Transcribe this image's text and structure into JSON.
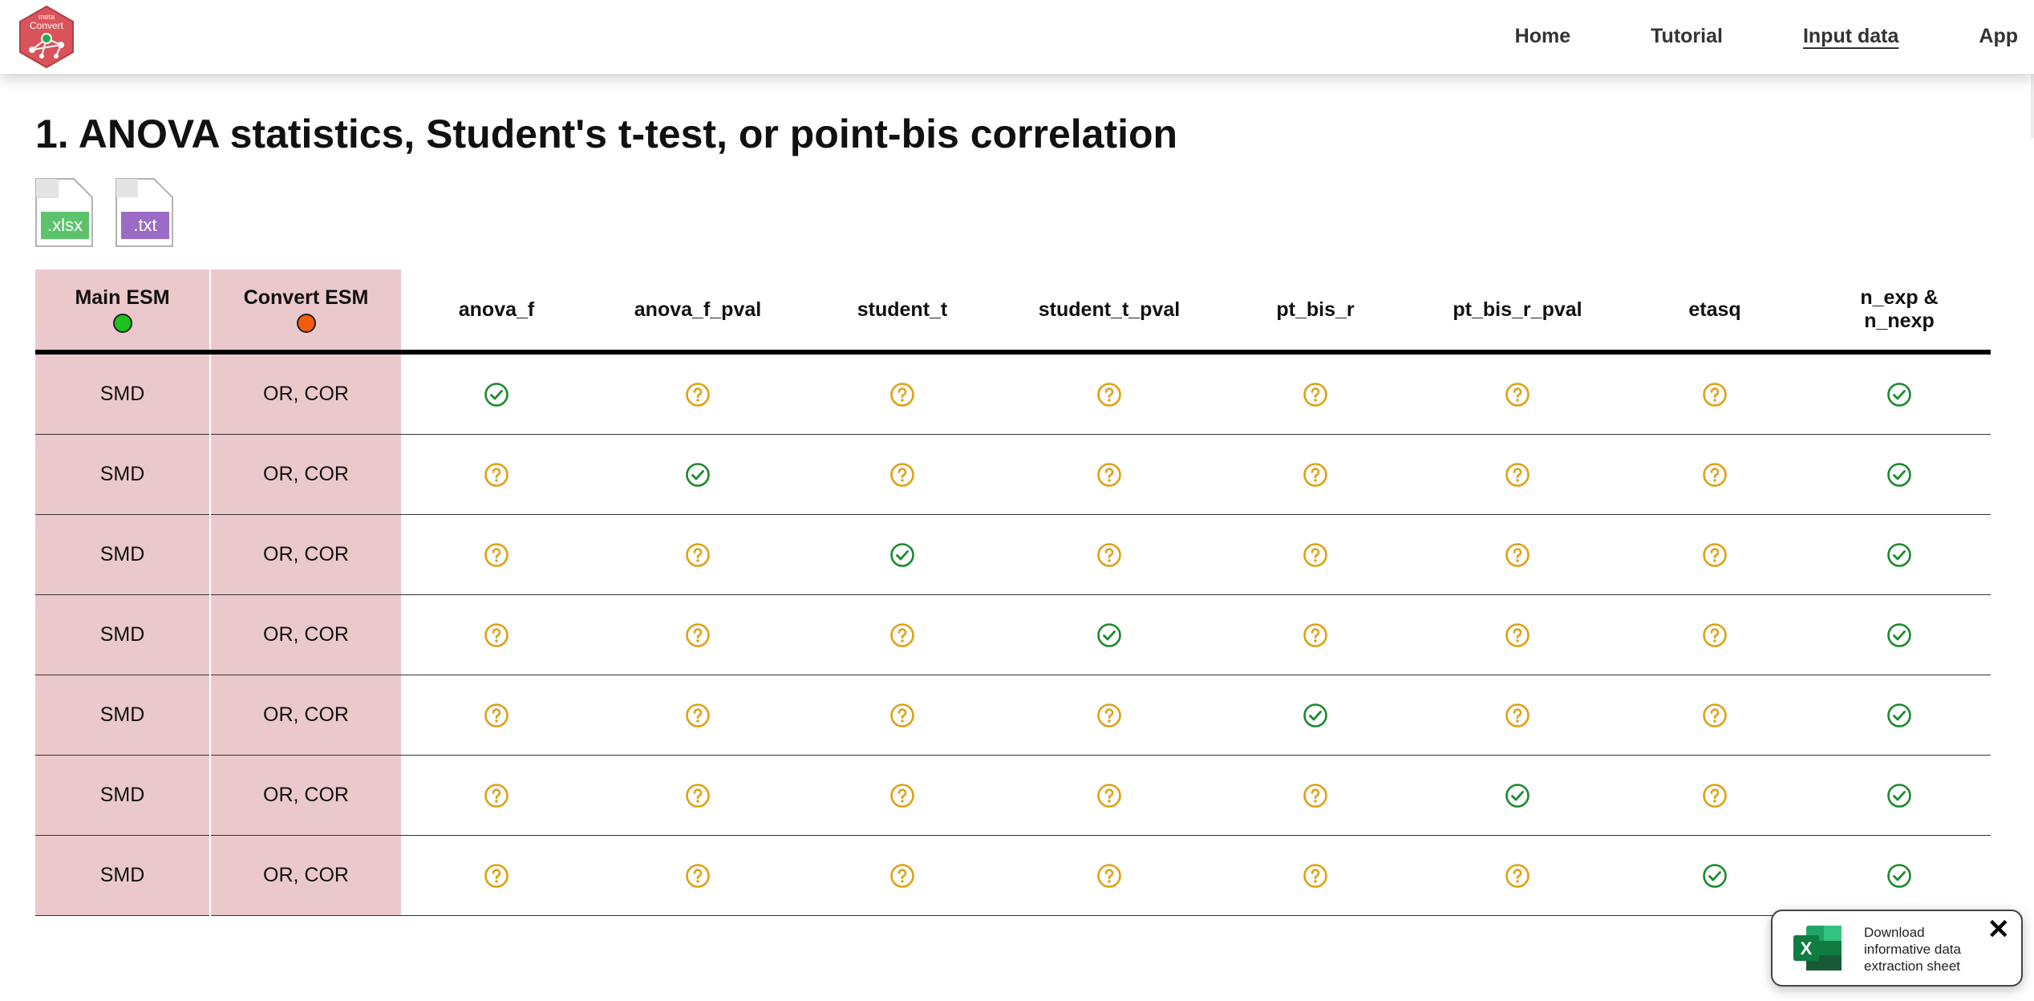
{
  "nav": {
    "logo_top": "meta",
    "logo_bottom": "Convert",
    "links": [
      "Home",
      "Tutorial",
      "Input data",
      "App"
    ],
    "active": "Input data"
  },
  "page": {
    "title": "1. ANOVA statistics, Student's t-test, or point-bis correlation"
  },
  "file_icons": [
    ".xlsx",
    ".txt"
  ],
  "colors": {
    "main_esm_dot": "#1ec21e",
    "convert_esm_dot": "#f25c0c",
    "esm_cell_bg": "#ebc8cc",
    "check_green": "#1a8a2a",
    "question_amber": "#e0a010",
    "xlsx_green": "#5cc36c",
    "txt_purple": "#9b6bc6"
  },
  "table": {
    "headers": {
      "main_esm": "Main ESM",
      "convert_esm": "Convert ESM",
      "anova_f": "anova_f",
      "anova_f_pval": "anova_f_pval",
      "student_t": "student_t",
      "student_t_pval": "student_t_pval",
      "pt_bis_r": "pt_bis_r",
      "pt_bis_r_pval": "pt_bis_r_pval",
      "etasq": "etasq",
      "n_exp_line1": "n_exp &",
      "n_exp_line2": "n_nexp"
    },
    "status_legend": {
      "check": "check-icon",
      "question": "question-icon"
    },
    "rows": [
      {
        "main": "SMD",
        "convert": "OR, COR",
        "status": [
          "check",
          "question",
          "question",
          "question",
          "question",
          "question",
          "question",
          "check"
        ]
      },
      {
        "main": "SMD",
        "convert": "OR, COR",
        "status": [
          "question",
          "check",
          "question",
          "question",
          "question",
          "question",
          "question",
          "check"
        ]
      },
      {
        "main": "SMD",
        "convert": "OR, COR",
        "status": [
          "question",
          "question",
          "check",
          "question",
          "question",
          "question",
          "question",
          "check"
        ]
      },
      {
        "main": "SMD",
        "convert": "OR, COR",
        "status": [
          "question",
          "question",
          "question",
          "check",
          "question",
          "question",
          "question",
          "check"
        ]
      },
      {
        "main": "SMD",
        "convert": "OR, COR",
        "status": [
          "question",
          "question",
          "question",
          "question",
          "check",
          "question",
          "question",
          "check"
        ]
      },
      {
        "main": "SMD",
        "convert": "OR, COR",
        "status": [
          "question",
          "question",
          "question",
          "question",
          "question",
          "check",
          "question",
          "check"
        ]
      },
      {
        "main": "SMD",
        "convert": "OR, COR",
        "status": [
          "question",
          "question",
          "question",
          "question",
          "question",
          "question",
          "check",
          "check"
        ]
      }
    ]
  },
  "toast": {
    "line1": "Download",
    "line2": "informative data",
    "line3": "extraction sheet",
    "excel_letter": "X",
    "close": "✕"
  }
}
